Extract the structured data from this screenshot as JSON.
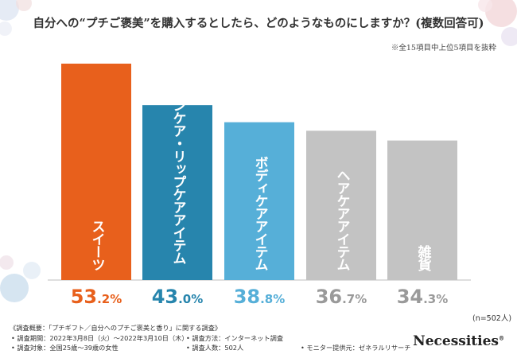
{
  "title": "自分への“プチご褒美”を購入するとしたら、どのようなものにしますか？(複数回答可)",
  "subnote": "※全15項目中上位5項目を抜粋",
  "n_note": "(n=502人)",
  "footer": {
    "heading": "《調査概要：「プチギフト／自分へのプチご褒美と香り」に関する調査》",
    "period": "• 調査期間：2022年3月8日（火）～2022年3月10日（木）",
    "method": "• 調査方法：インターネット調査",
    "subjects": "• 調査対象：全国25歳～39歳の女性",
    "count": "• 調査人数：502人",
    "provider": "• モニター提供元：ゼネラルリサーチ"
  },
  "brand": "Necessities",
  "brand_mark": "®",
  "colors": {
    "orange": "#e8601c",
    "blue_dark": "#2785ad",
    "blue_light": "#56afd8",
    "gray": "#c3c3c3",
    "pct_gray": "#9a9a9a"
  },
  "chart_data": {
    "type": "bar",
    "title": "自分への“プチご褒美”を購入するとしたら、どのようなものにしますか？(複数回答可)",
    "categories": [
      "スイーツ",
      "スキンケア・リップケアアイテム",
      "ボディケアアイテム",
      "ヘアケアアイテム",
      "雑貨"
    ],
    "values": [
      53.2,
      43.0,
      38.8,
      36.7,
      34.3
    ],
    "value_labels": [
      {
        "int": "53",
        "dec": ".2",
        "unit": "%"
      },
      {
        "int": "43",
        "dec": ".0",
        "unit": "%"
      },
      {
        "int": "38",
        "dec": ".8",
        "unit": "%"
      },
      {
        "int": "36",
        "dec": ".7",
        "unit": "%"
      },
      {
        "int": "34",
        "dec": ".3",
        "unit": "%"
      }
    ],
    "bar_colors": [
      "#e8601c",
      "#2785ad",
      "#56afd8",
      "#c3c3c3",
      "#c3c3c3"
    ],
    "label_colors": [
      "#e8601c",
      "#2785ad",
      "#56afd8",
      "#9a9a9a",
      "#9a9a9a"
    ],
    "ylim": [
      0,
      60
    ],
    "xlabel": "",
    "ylabel": "",
    "grid": false
  }
}
